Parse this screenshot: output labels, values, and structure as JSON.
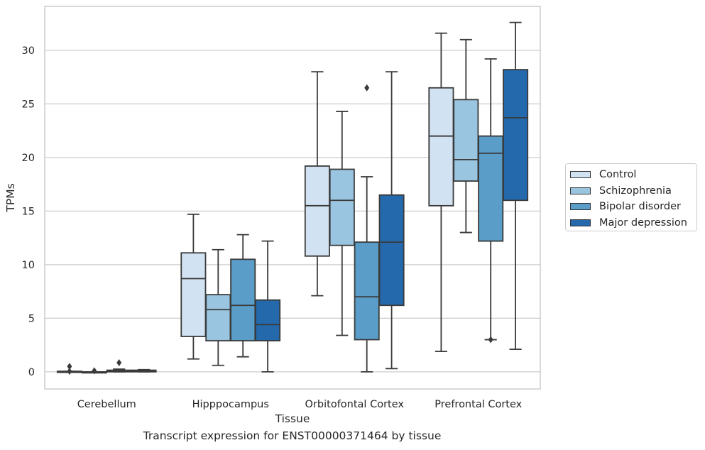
{
  "caption": "Transcript expression for ENST00000371464 by tissue",
  "chart_data": {
    "type": "boxplot",
    "xlabel": "Tissue",
    "ylabel": "TPMs",
    "ylim": [
      -1.6,
      34.1
    ],
    "y_ticks": [
      0,
      5,
      10,
      15,
      20,
      25,
      30
    ],
    "grid": "horizontal",
    "legend_placement": "right, outside plot",
    "categories": [
      "Cerebellum",
      "Hipppocampus",
      "Orbitofontal Cortex",
      "Prefrontal Cortex"
    ],
    "series": [
      {
        "name": "Control",
        "color": "#d1e2f2",
        "boxes": [
          {
            "whislo": 0.0,
            "q1": 0.0,
            "med": 0.0,
            "q3": 0.05,
            "whishi": 0.05,
            "fliers": [
              0.05,
              0.5
            ]
          },
          {
            "whislo": 1.2,
            "q1": 3.3,
            "med": 8.7,
            "q3": 11.1,
            "whishi": 14.7,
            "fliers": []
          },
          {
            "whislo": 7.1,
            "q1": 10.8,
            "med": 15.5,
            "q3": 19.2,
            "whishi": 28.0,
            "fliers": []
          },
          {
            "whislo": 1.9,
            "q1": 15.5,
            "med": 22.0,
            "q3": 26.5,
            "whishi": 31.6,
            "fliers": []
          }
        ]
      },
      {
        "name": "Schizophrenia",
        "color": "#9ac5e0",
        "boxes": [
          {
            "whislo": 0.0,
            "q1": 0.0,
            "med": 0.0,
            "q3": 0.0,
            "whishi": 0.0,
            "fliers": [
              0.1
            ]
          },
          {
            "whislo": 0.6,
            "q1": 2.9,
            "med": 5.8,
            "q3": 7.2,
            "whishi": 11.4,
            "fliers": []
          },
          {
            "whislo": 3.4,
            "q1": 11.8,
            "med": 16.0,
            "q3": 18.9,
            "whishi": 24.3,
            "fliers": []
          },
          {
            "whislo": 13.0,
            "q1": 17.8,
            "med": 19.8,
            "q3": 25.4,
            "whishi": 31.0,
            "fliers": []
          }
        ]
      },
      {
        "name": "Bipolar disorder",
        "color": "#5a9dc8",
        "boxes": [
          {
            "whislo": 0.0,
            "q1": 0.0,
            "med": 0.05,
            "q3": 0.15,
            "whishi": 0.25,
            "fliers": [
              0.85
            ]
          },
          {
            "whislo": 1.4,
            "q1": 2.9,
            "med": 6.2,
            "q3": 10.5,
            "whishi": 12.8,
            "fliers": []
          },
          {
            "whislo": 0.0,
            "q1": 3.0,
            "med": 7.0,
            "q3": 12.1,
            "whishi": 18.2,
            "fliers": [
              26.5
            ]
          },
          {
            "whislo": 3.0,
            "q1": 12.2,
            "med": 20.4,
            "q3": 22.0,
            "whishi": 29.2,
            "fliers": [
              3.0
            ]
          }
        ]
      },
      {
        "name": "Major depression",
        "color": "#2369ac",
        "boxes": [
          {
            "whislo": 0.0,
            "q1": 0.0,
            "med": 0.05,
            "q3": 0.15,
            "whishi": 0.2,
            "fliers": []
          },
          {
            "whislo": 0.0,
            "q1": 2.9,
            "med": 4.4,
            "q3": 6.7,
            "whishi": 12.2,
            "fliers": []
          },
          {
            "whislo": 0.3,
            "q1": 6.2,
            "med": 12.1,
            "q3": 16.5,
            "whishi": 28.0,
            "fliers": []
          },
          {
            "whislo": 2.1,
            "q1": 16.0,
            "med": 23.7,
            "q3": 28.2,
            "whishi": 32.6,
            "fliers": []
          }
        ]
      }
    ]
  }
}
